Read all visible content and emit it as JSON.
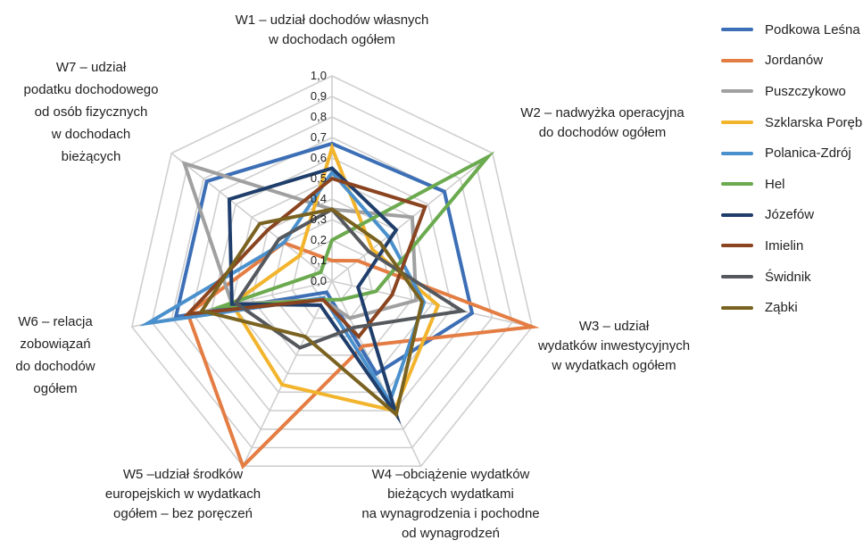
{
  "chart_data": {
    "type": "radar",
    "axes": [
      "W1 – udział dochodów własnych\nw dochodach ogółem",
      "W2 – nadwyżka operacyjna\ndo dochodów ogółem",
      "W3 – udział\nwydatków inwestycyjnych\nw wydatkach ogółem",
      "W4 –obciążenie wydatków\nbieżących wydatkami\nna wynagrodzenia i pochodne\nod wynagrodzeń",
      "W5 –udział środków\neuropejskich w wydatkach\nogółem – bez poręczeń",
      "W6 – relacja\nzobowiązań\ndo dochodów\nogółem",
      "W7 – udział\npodatku dochodowego\nod osób fizycznych\nw dochodach\nbieżących"
    ],
    "ticks": [
      "0,0",
      "0,1",
      "0,2",
      "0,3",
      "0,4",
      "0,5",
      "0,6",
      "0,7",
      "0,8",
      "0,9",
      "1,0"
    ],
    "range": [
      0,
      1
    ],
    "gridlines": true,
    "legend_position": "right",
    "series": [
      {
        "name": "Podkowa Leśna",
        "color": "#3D6FB6",
        "values": [
          0.67,
          0.7,
          0.7,
          0.5,
          0.06,
          0.78,
          0.78
        ]
      },
      {
        "name": "Jordanów",
        "color": "#E47D43",
        "values": [
          0.1,
          0.16,
          1.0,
          0.35,
          1.0,
          0.72,
          0.3
        ]
      },
      {
        "name": "Puszczykowo",
        "color": "#A0A0A0",
        "values": [
          0.35,
          0.5,
          0.42,
          0.2,
          0.1,
          0.5,
          0.92
        ]
      },
      {
        "name": "Szklarska Poręba",
        "color": "#F2B42C",
        "values": [
          0.65,
          0.25,
          0.53,
          0.7,
          0.56,
          0.5,
          0.2
        ]
      },
      {
        "name": "Polanica-Zdrój",
        "color": "#4A90CC",
        "values": [
          0.53,
          0.35,
          0.46,
          0.65,
          0.09,
          0.92,
          0.3
        ]
      },
      {
        "name": "Hel",
        "color": "#6BAA4E",
        "values": [
          0.2,
          0.97,
          0.22,
          0.1,
          0.1,
          0.55,
          0.07
        ]
      },
      {
        "name": "Józefów",
        "color": "#1F3E6B",
        "values": [
          0.55,
          0.4,
          0.13,
          0.72,
          0.13,
          0.5,
          0.64
        ]
      },
      {
        "name": "Imielin",
        "color": "#8A4420",
        "values": [
          0.5,
          0.58,
          0.3,
          0.3,
          0.1,
          0.72,
          0.4
        ]
      },
      {
        "name": "Świdnik",
        "color": "#55595E",
        "values": [
          0.35,
          0.23,
          0.65,
          0.25,
          0.36,
          0.48,
          0.33
        ]
      },
      {
        "name": "Ząbki",
        "color": "#7A6220",
        "values": [
          0.35,
          0.3,
          0.45,
          0.72,
          0.3,
          0.65,
          0.45
        ]
      }
    ]
  }
}
